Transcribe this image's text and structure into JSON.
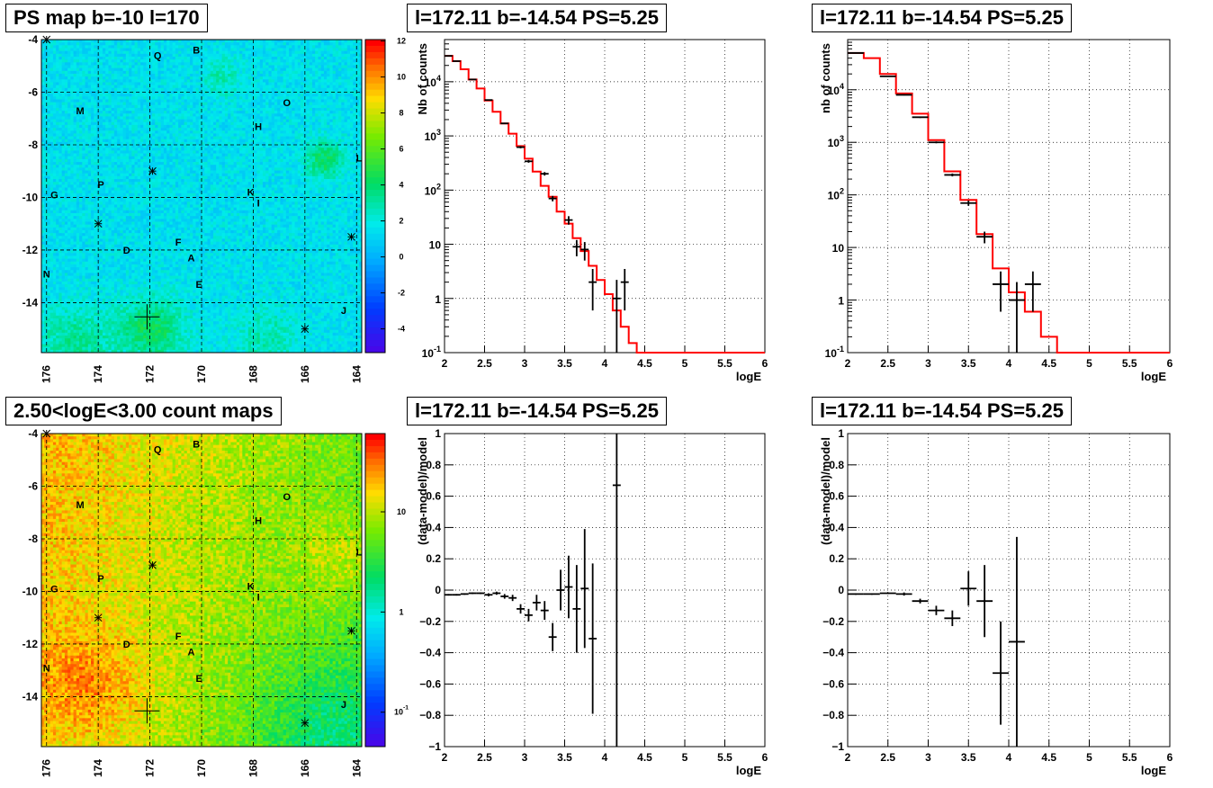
{
  "panels": {
    "map_top_title": "PS map b=-10 l=170",
    "map_bottom_title": "2.50<logE<3.00 count maps",
    "spec1_title": "l=172.11 b=-14.54 PS=5.25",
    "spec2_title": "l=172.11 b=-14.54 PS=5.25",
    "res1_title": "l=172.11 b=-14.54 PS=5.25",
    "res2_title": "l=172.11 b=-14.54 PS=5.25"
  },
  "colors": {
    "model_line": "#ff0000",
    "data": "#000000",
    "grid": "#000000"
  },
  "chart_data": [
    {
      "id": "map_top",
      "type": "heatmap",
      "title": "PS map b=-10 l=170",
      "x_ticks": [
        "176",
        "174",
        "172",
        "170",
        "168",
        "166",
        "164"
      ],
      "y_ticks": [
        "-4",
        "-6",
        "-8",
        "-10",
        "-12",
        "-14"
      ],
      "colorbar_ticks": [
        "12",
        "10",
        "8",
        "6",
        "4",
        "2",
        "0",
        "-2",
        "-4"
      ],
      "xlim": [
        176.2,
        163.8
      ],
      "ylim": [
        -15.9,
        -4
      ],
      "sources": [
        {
          "label": "Q",
          "l": 171.7,
          "b": -4.6
        },
        {
          "label": "B",
          "l": 170.2,
          "b": -4.4
        },
        {
          "label": "M",
          "l": 174.7,
          "b": -6.7
        },
        {
          "label": "O",
          "l": 166.7,
          "b": -6.4
        },
        {
          "label": "H",
          "l": 167.8,
          "b": -7.3
        },
        {
          "label": "L",
          "l": 163.9,
          "b": -8.5
        },
        {
          "label": "P",
          "l": 173.9,
          "b": -9.5
        },
        {
          "label": "G",
          "l": 175.7,
          "b": -9.9
        },
        {
          "label": "K",
          "l": 168.1,
          "b": -9.8
        },
        {
          "label": "I",
          "l": 167.8,
          "b": -10.2
        },
        {
          "label": "F",
          "l": 170.9,
          "b": -11.7
        },
        {
          "label": "D",
          "l": 172.9,
          "b": -12.0
        },
        {
          "label": "A",
          "l": 170.4,
          "b": -12.3
        },
        {
          "label": "N",
          "l": 176.0,
          "b": -12.9
        },
        {
          "label": "E",
          "l": 170.1,
          "b": -13.3
        },
        {
          "label": "J",
          "l": 164.5,
          "b": -14.3
        }
      ],
      "crosses": [
        {
          "l": 176.0,
          "b": -4.0,
          "size": "small"
        },
        {
          "l": 171.9,
          "b": -9.0,
          "size": "small"
        },
        {
          "l": 174.0,
          "b": -11.0,
          "size": "small"
        },
        {
          "l": 164.2,
          "b": -11.5,
          "size": "small"
        },
        {
          "l": 166.0,
          "b": -15.0,
          "size": "small"
        },
        {
          "l": 172.11,
          "b": -14.54,
          "size": "large"
        }
      ]
    },
    {
      "id": "map_bottom",
      "type": "heatmap",
      "title": "2.50<logE<3.00 count maps",
      "x_ticks": [
        "176",
        "174",
        "172",
        "170",
        "168",
        "166",
        "164"
      ],
      "y_ticks": [
        "-4",
        "-6",
        "-8",
        "-10",
        "-12",
        "-14"
      ],
      "colorbar_ticks": [
        "10",
        "1",
        "10-1"
      ],
      "colorbar_scale": "log",
      "xlim": [
        176.2,
        163.8
      ],
      "ylim": [
        -15.9,
        -4
      ]
    },
    {
      "id": "spec1",
      "type": "line",
      "title": "l=172.11 b=-14.54 PS=5.25",
      "xlabel": "logE",
      "ylabel": "Nb of counts",
      "xlim": [
        2,
        6
      ],
      "ylim": [
        0.1,
        60000
      ],
      "yscale": "log",
      "x_ticks": [
        "2",
        "2.5",
        "3",
        "3.5",
        "4",
        "4.5",
        "5",
        "5.5",
        "6"
      ],
      "y_ticks": [
        "10-1",
        "1",
        "10",
        "102",
        "103",
        "104"
      ],
      "model_steps": {
        "edges": [
          2.0,
          2.1,
          2.2,
          2.3,
          2.4,
          2.5,
          2.6,
          2.7,
          2.8,
          2.9,
          3.0,
          3.1,
          3.2,
          3.3,
          3.4,
          3.5,
          3.6,
          3.7,
          3.8,
          3.9,
          4.0,
          4.1,
          4.2,
          4.3,
          4.4,
          6.0
        ],
        "values": [
          30000,
          24000,
          17000,
          11000,
          7500,
          4500,
          2800,
          1700,
          1100,
          650,
          380,
          220,
          120,
          75,
          40,
          24,
          13,
          7.5,
          4,
          2.2,
          1.2,
          0.6,
          0.3,
          0.15,
          0.1
        ]
      },
      "data_points": [
        {
          "x": 2.05,
          "y": 30000,
          "xerr": 0.05,
          "ylo": 29800,
          "yhi": 30200
        },
        {
          "x": 2.15,
          "y": 24000,
          "xerr": 0.05,
          "ylo": 23800,
          "yhi": 24200
        },
        {
          "x": 2.35,
          "y": 11000,
          "xerr": 0.05,
          "ylo": 10800,
          "yhi": 11200
        },
        {
          "x": 2.55,
          "y": 4600,
          "xerr": 0.05,
          "ylo": 4500,
          "yhi": 4700
        },
        {
          "x": 2.75,
          "y": 1700,
          "xerr": 0.05,
          "ylo": 1650,
          "yhi": 1750
        },
        {
          "x": 2.95,
          "y": 620,
          "xerr": 0.05,
          "ylo": 590,
          "yhi": 650
        },
        {
          "x": 3.05,
          "y": 340,
          "xerr": 0.05,
          "ylo": 320,
          "yhi": 360
        },
        {
          "x": 3.25,
          "y": 200,
          "xerr": 0.05,
          "ylo": 185,
          "yhi": 215
        },
        {
          "x": 3.35,
          "y": 70,
          "xerr": 0.05,
          "ylo": 62,
          "yhi": 78
        },
        {
          "x": 3.55,
          "y": 28,
          "xerr": 0.05,
          "ylo": 23,
          "yhi": 33
        },
        {
          "x": 3.65,
          "y": 9,
          "xerr": 0.05,
          "ylo": 6,
          "yhi": 12
        },
        {
          "x": 3.75,
          "y": 8,
          "xerr": 0.05,
          "ylo": 5,
          "yhi": 11
        },
        {
          "x": 3.85,
          "y": 2,
          "xerr": 0.05,
          "ylo": 0.6,
          "yhi": 3.5
        },
        {
          "x": 4.15,
          "y": 1,
          "xerr": 0.05,
          "ylo": 0.1,
          "yhi": 2.2
        },
        {
          "x": 4.25,
          "y": 2,
          "xerr": 0.05,
          "ylo": 0.6,
          "yhi": 3.5
        }
      ]
    },
    {
      "id": "spec2",
      "type": "line",
      "title": "l=172.11 b=-14.54 PS=5.25",
      "xlabel": "logE",
      "ylabel": "nb of counts",
      "xlim": [
        2,
        6
      ],
      "ylim": [
        0.1,
        90000
      ],
      "yscale": "log",
      "x_ticks": [
        "2",
        "2.5",
        "3",
        "3.5",
        "4",
        "4.5",
        "5",
        "5.5",
        "6"
      ],
      "y_ticks": [
        "10-1",
        "1",
        "10",
        "102",
        "103",
        "104"
      ],
      "model_steps": {
        "edges": [
          2.0,
          2.2,
          2.4,
          2.6,
          2.8,
          3.0,
          3.2,
          3.4,
          3.6,
          3.8,
          4.0,
          4.2,
          4.4,
          4.6,
          6.0
        ],
        "values": [
          50000,
          40000,
          20000,
          8500,
          3500,
          1100,
          280,
          80,
          18,
          4,
          1.4,
          0.6,
          0.2,
          0.1
        ]
      },
      "data_points": [
        {
          "x": 2.1,
          "y": 50000,
          "xerr": 0.1,
          "ylo": 49500,
          "yhi": 50500
        },
        {
          "x": 2.5,
          "y": 18000,
          "xerr": 0.1,
          "ylo": 17700,
          "yhi": 18300
        },
        {
          "x": 2.7,
          "y": 8000,
          "xerr": 0.1,
          "ylo": 7800,
          "yhi": 8200
        },
        {
          "x": 2.9,
          "y": 3000,
          "xerr": 0.1,
          "ylo": 2900,
          "yhi": 3100
        },
        {
          "x": 3.1,
          "y": 1000,
          "xerr": 0.1,
          "ylo": 960,
          "yhi": 1040
        },
        {
          "x": 3.3,
          "y": 240,
          "xerr": 0.1,
          "ylo": 225,
          "yhi": 255
        },
        {
          "x": 3.5,
          "y": 70,
          "xerr": 0.1,
          "ylo": 62,
          "yhi": 78
        },
        {
          "x": 3.7,
          "y": 16,
          "xerr": 0.1,
          "ylo": 12,
          "yhi": 20
        },
        {
          "x": 3.9,
          "y": 2,
          "xerr": 0.1,
          "ylo": 0.6,
          "yhi": 3.5
        },
        {
          "x": 4.1,
          "y": 1,
          "xerr": 0.1,
          "ylo": 0.1,
          "yhi": 2.2
        },
        {
          "x": 4.3,
          "y": 2,
          "xerr": 0.1,
          "ylo": 0.6,
          "yhi": 3.5
        }
      ]
    },
    {
      "id": "res1",
      "type": "scatter",
      "title": "l=172.11 b=-14.54 PS=5.25",
      "xlabel": "logE",
      "ylabel": "(data-model)/model",
      "xlim": [
        2,
        6
      ],
      "ylim": [
        -1,
        1
      ],
      "x_ticks": [
        "2",
        "2.5",
        "3",
        "3.5",
        "4",
        "4.5",
        "5",
        "5.5",
        "6"
      ],
      "y_ticks": [
        "-1",
        "-0.8",
        "-0.6",
        "-0.4",
        "-0.2",
        "0",
        "0.2",
        "0.4",
        "0.6",
        "0.8",
        "1"
      ],
      "data_points": [
        {
          "x": 2.05,
          "y": -0.03,
          "xerr": 0.05,
          "yerr": 0.005
        },
        {
          "x": 2.15,
          "y": -0.03,
          "xerr": 0.05,
          "yerr": 0.005
        },
        {
          "x": 2.25,
          "y": -0.025,
          "xerr": 0.05,
          "yerr": 0.005
        },
        {
          "x": 2.35,
          "y": -0.02,
          "xerr": 0.05,
          "yerr": 0.005
        },
        {
          "x": 2.45,
          "y": -0.02,
          "xerr": 0.05,
          "yerr": 0.005
        },
        {
          "x": 2.55,
          "y": -0.03,
          "xerr": 0.05,
          "yerr": 0.01
        },
        {
          "x": 2.65,
          "y": -0.02,
          "xerr": 0.05,
          "yerr": 0.01
        },
        {
          "x": 2.75,
          "y": -0.04,
          "xerr": 0.05,
          "yerr": 0.015
        },
        {
          "x": 2.85,
          "y": -0.05,
          "xerr": 0.05,
          "yerr": 0.02
        },
        {
          "x": 2.95,
          "y": -0.12,
          "xerr": 0.05,
          "yerr": 0.03
        },
        {
          "x": 3.05,
          "y": -0.16,
          "xerr": 0.05,
          "yerr": 0.04
        },
        {
          "x": 3.15,
          "y": -0.08,
          "xerr": 0.05,
          "yerr": 0.05
        },
        {
          "x": 3.25,
          "y": -0.13,
          "xerr": 0.05,
          "yerr": 0.06
        },
        {
          "x": 3.35,
          "y": -0.3,
          "xerr": 0.05,
          "yerr": 0.09
        },
        {
          "x": 3.45,
          "y": 0.0,
          "xerr": 0.05,
          "yerr": 0.13
        },
        {
          "x": 3.55,
          "y": 0.02,
          "xerr": 0.05,
          "yerr": 0.2
        },
        {
          "x": 3.65,
          "y": -0.12,
          "xerr": 0.05,
          "yerr": 0.28
        },
        {
          "x": 3.75,
          "y": 0.01,
          "xerr": 0.05,
          "yerr": 0.38
        },
        {
          "x": 3.85,
          "y": -0.31,
          "xerr": 0.05,
          "yerr": 0.48
        },
        {
          "x": 4.15,
          "y": 0.67,
          "xerr": 0.05,
          "yerr": 1.7
        }
      ]
    },
    {
      "id": "res2",
      "type": "scatter",
      "title": "l=172.11 b=-14.54 PS=5.25",
      "xlabel": "logE",
      "ylabel": "(data-model)/model",
      "xlim": [
        2,
        6
      ],
      "ylim": [
        -1,
        1
      ],
      "x_ticks": [
        "2",
        "2.5",
        "3",
        "3.5",
        "4",
        "4.5",
        "5",
        "5.5",
        "6"
      ],
      "y_ticks": [
        "-1",
        "-0.8",
        "-0.6",
        "-0.4",
        "-0.2",
        "0",
        "0.2",
        "0.4",
        "0.6",
        "0.8",
        "1"
      ],
      "data_points": [
        {
          "x": 2.1,
          "y": -0.025,
          "xerr": 0.1,
          "yerr": 0.005
        },
        {
          "x": 2.3,
          "y": -0.025,
          "xerr": 0.1,
          "yerr": 0.005
        },
        {
          "x": 2.5,
          "y": -0.02,
          "xerr": 0.1,
          "yerr": 0.005
        },
        {
          "x": 2.7,
          "y": -0.025,
          "xerr": 0.1,
          "yerr": 0.01
        },
        {
          "x": 2.9,
          "y": -0.07,
          "xerr": 0.1,
          "yerr": 0.015
        },
        {
          "x": 3.1,
          "y": -0.13,
          "xerr": 0.1,
          "yerr": 0.03
        },
        {
          "x": 3.3,
          "y": -0.18,
          "xerr": 0.1,
          "yerr": 0.05
        },
        {
          "x": 3.5,
          "y": 0.01,
          "xerr": 0.1,
          "yerr": 0.11
        },
        {
          "x": 3.7,
          "y": -0.07,
          "xerr": 0.1,
          "yerr": 0.23
        },
        {
          "x": 3.9,
          "y": -0.53,
          "xerr": 0.1,
          "yerr": 0.33
        },
        {
          "x": 4.1,
          "y": -0.33,
          "xerr": 0.1,
          "yerr": 0.67
        }
      ]
    }
  ]
}
